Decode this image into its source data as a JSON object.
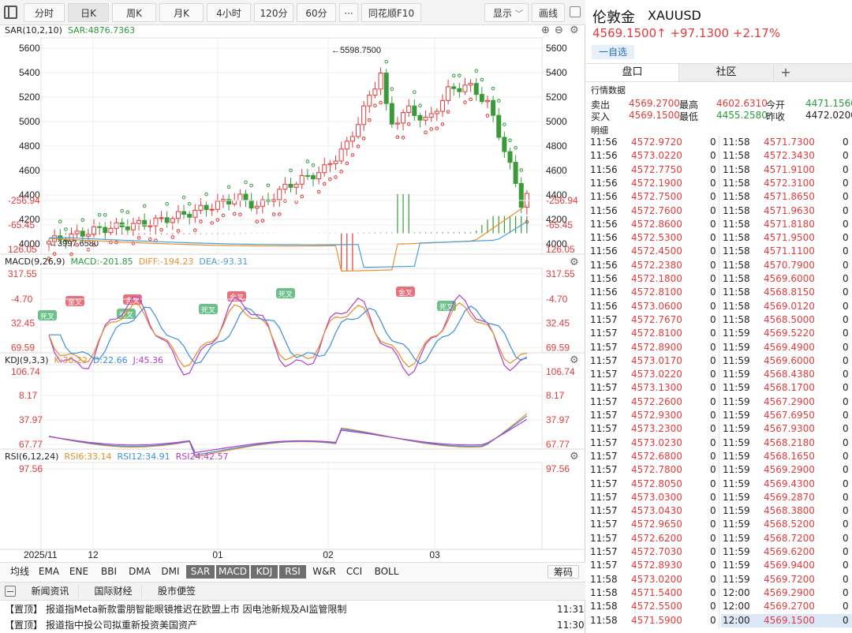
{
  "toolbar": {
    "tabs": [
      "分时",
      "日K",
      "周K",
      "月K",
      "4小时",
      "120分",
      "60分"
    ],
    "more": "···",
    "f10": "同花顺F10",
    "display": "显示",
    "draw": "画线"
  },
  "sar": {
    "label": "SAR(10,2,10)",
    "value": "SAR:4876.7363",
    "y_ticks": [
      "5600",
      "5400",
      "5200",
      "5000",
      "4800",
      "4600",
      "4400",
      "4200",
      "4000"
    ],
    "high_label": "5598.7500",
    "low_label": "3997.6580"
  },
  "macd": {
    "label": "MACD(9,26,9)",
    "macd": "MACD:-201.85",
    "diff": "DIFF:-194.23",
    "dea": "DEA:-93.31",
    "ticks": [
      "317.55",
      "126.05",
      "-65.45",
      "-256.94"
    ],
    "cross_gold": "金叉",
    "cross_dead": "死叉"
  },
  "kdj": {
    "label": "KDJ(9,3,3)",
    "k": "K:30.22",
    "d": "D:22.66",
    "j": "J:45.36",
    "ticks": [
      "106.74",
      "69.59",
      "32.45",
      "-4.70"
    ]
  },
  "rsi": {
    "label": "RSI(6,12,24)",
    "r6": "RSI6:33.14",
    "r12": "RSI12:34.91",
    "r24": "RSI24:42.57",
    "ticks": [
      "97.56",
      "67.77",
      "37.97",
      "8.17"
    ]
  },
  "xaxis": [
    "2025/11",
    "12",
    "01",
    "02",
    "03"
  ],
  "indicators": [
    "均线",
    "EMA",
    "ENE",
    "BBI",
    "DMA",
    "DMI",
    "SAR",
    "MACD",
    "KDJ",
    "RSI",
    "W&R",
    "CCI",
    "BOLL"
  ],
  "chip": "筹码",
  "news": {
    "tabs": [
      "新闻资讯",
      "国际财经",
      "股市便签"
    ],
    "items": [
      {
        "tag": "【置顶】",
        "text": "报道指Meta新款雷朋智能眼镜推迟在欧盟上市 因电池新规及AI监管限制",
        "time": "11:31"
      },
      {
        "tag": "【置顶】",
        "text": "报道指中投公司拟重新投资美国资产",
        "time": "11:30"
      }
    ]
  },
  "quote": {
    "name": "伦敦金",
    "code": "XAUUSD",
    "price": "4569.1500",
    "arrow": "↑",
    "change": "+97.1300",
    "pct": "+2.17%",
    "watch": "一自选"
  },
  "rtabs": {
    "pankou": "盘口",
    "community": "社区",
    "plus": "+"
  },
  "market": {
    "title": "行情数据",
    "sell_l": "卖出",
    "sell": "4569.2700",
    "high_l": "最高",
    "high": "4602.6310",
    "open_l": "今开",
    "open": "4471.1560",
    "buy_l": "买入",
    "buy": "4569.1500",
    "low_l": "最低",
    "low": "4455.2580",
    "prev_l": "昨收",
    "prev": "4472.0200",
    "detail": "明细"
  },
  "ticks_left": [
    [
      "11:56",
      "4572.9720",
      "0"
    ],
    [
      "11:56",
      "4573.0220",
      "0"
    ],
    [
      "11:56",
      "4572.7750",
      "0"
    ],
    [
      "11:56",
      "4572.1900",
      "0"
    ],
    [
      "11:56",
      "4572.7500",
      "0"
    ],
    [
      "11:56",
      "4572.7600",
      "0"
    ],
    [
      "11:56",
      "4572.8600",
      "0"
    ],
    [
      "11:56",
      "4572.5300",
      "0"
    ],
    [
      "11:56",
      "4572.4500",
      "0"
    ],
    [
      "11:56",
      "4572.2380",
      "0"
    ],
    [
      "11:56",
      "4572.1800",
      "0"
    ],
    [
      "11:56",
      "4572.8100",
      "0"
    ],
    [
      "11:56",
      "4573.0600",
      "0"
    ],
    [
      "11:57",
      "4572.7670",
      "0"
    ],
    [
      "11:57",
      "4572.8100",
      "0"
    ],
    [
      "11:57",
      "4572.8900",
      "0"
    ],
    [
      "11:57",
      "4573.0170",
      "0"
    ],
    [
      "11:57",
      "4573.0220",
      "0"
    ],
    [
      "11:57",
      "4573.1300",
      "0"
    ],
    [
      "11:57",
      "4572.2600",
      "0"
    ],
    [
      "11:57",
      "4572.9300",
      "0"
    ],
    [
      "11:57",
      "4573.2300",
      "0"
    ],
    [
      "11:57",
      "4573.0230",
      "0"
    ],
    [
      "11:57",
      "4572.6800",
      "0"
    ],
    [
      "11:57",
      "4572.7800",
      "0"
    ],
    [
      "11:57",
      "4572.8050",
      "0"
    ],
    [
      "11:57",
      "4573.0300",
      "0"
    ],
    [
      "11:57",
      "4573.0430",
      "0"
    ],
    [
      "11:57",
      "4572.9650",
      "0"
    ],
    [
      "11:57",
      "4572.6200",
      "0"
    ],
    [
      "11:57",
      "4572.7030",
      "0"
    ],
    [
      "11:57",
      "4572.8930",
      "0"
    ],
    [
      "11:58",
      "4573.0200",
      "0"
    ],
    [
      "11:58",
      "4571.5400",
      "0"
    ],
    [
      "11:58",
      "4572.5500",
      "0"
    ],
    [
      "11:58",
      "4571.5900",
      "0"
    ]
  ],
  "ticks_right": [
    [
      "11:58",
      "4571.7300",
      "0"
    ],
    [
      "11:58",
      "4572.3430",
      "0"
    ],
    [
      "11:58",
      "4571.9100",
      "0"
    ],
    [
      "11:58",
      "4572.3100",
      "0"
    ],
    [
      "11:58",
      "4571.8650",
      "0"
    ],
    [
      "11:58",
      "4571.9630",
      "0"
    ],
    [
      "11:58",
      "4571.8180",
      "0"
    ],
    [
      "11:58",
      "4571.9500",
      "0"
    ],
    [
      "11:58",
      "4571.1100",
      "0"
    ],
    [
      "11:58",
      "4570.7900",
      "0"
    ],
    [
      "11:58",
      "4569.6000",
      "0"
    ],
    [
      "11:58",
      "4568.8150",
      "0"
    ],
    [
      "11:58",
      "4569.0120",
      "0"
    ],
    [
      "11:58",
      "4568.5000",
      "0"
    ],
    [
      "11:59",
      "4569.5220",
      "0"
    ],
    [
      "11:59",
      "4569.4900",
      "0"
    ],
    [
      "11:59",
      "4569.6000",
      "0"
    ],
    [
      "11:59",
      "4568.4380",
      "0"
    ],
    [
      "11:59",
      "4568.1700",
      "0"
    ],
    [
      "11:59",
      "4567.2900",
      "0"
    ],
    [
      "11:59",
      "4567.6950",
      "0"
    ],
    [
      "11:59",
      "4567.9300",
      "0"
    ],
    [
      "11:59",
      "4568.2180",
      "0"
    ],
    [
      "11:59",
      "4568.1650",
      "0"
    ],
    [
      "11:59",
      "4569.2900",
      "0"
    ],
    [
      "11:59",
      "4569.4300",
      "0"
    ],
    [
      "11:59",
      "4569.2870",
      "0"
    ],
    [
      "11:59",
      "4568.3800",
      "0"
    ],
    [
      "11:59",
      "4568.5200",
      "0"
    ],
    [
      "11:59",
      "4568.7200",
      "0"
    ],
    [
      "11:59",
      "4569.6200",
      "0"
    ],
    [
      "11:59",
      "4569.9400",
      "0"
    ],
    [
      "11:59",
      "4569.7200",
      "0"
    ],
    [
      "12:00",
      "4569.2900",
      "0"
    ],
    [
      "12:00",
      "4569.2700",
      "0"
    ],
    [
      "12:00",
      "4569.1500",
      "0"
    ]
  ],
  "colors": {
    "up": "#e23b3b",
    "down": "#3a9a3a",
    "sar_dot_up": "#e03030",
    "sar_dot_dn": "#2b9a3b",
    "macd": "#f28b1e",
    "diff": "#e99030",
    "dea": "#4a9ed8",
    "k": "#e58b2a",
    "d": "#3b8fd6",
    "j": "#b43cc8"
  }
}
